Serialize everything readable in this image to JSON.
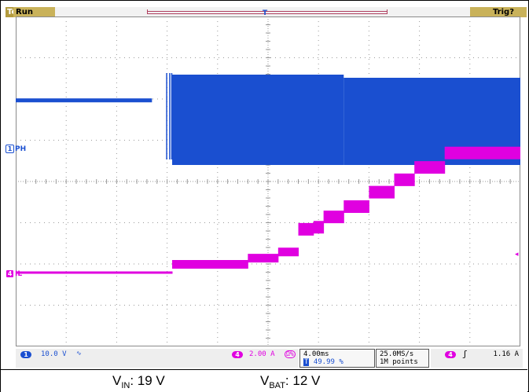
{
  "status_bar": {
    "logo": "Tek",
    "acq_state": "Run",
    "trigger_state": "Trig?"
  },
  "channels": {
    "ch1": {
      "number": "1",
      "label": "PH",
      "color": "#1a4fd0"
    },
    "ch4": {
      "number": "4",
      "label": "IL",
      "color": "#e000e0"
    }
  },
  "trigger_marker": "T",
  "readout": {
    "ch1_num": "1",
    "ch1_scale": "10.0 V",
    "ch1_bw_symbol": "∿",
    "ch4_num": "4",
    "ch4_scale": "2.00 A",
    "ch4_term": "Ω%",
    "timebase": "4.00ms",
    "trigger_pos": "49.99 %",
    "trigger_pos_marker": "T",
    "sample_rate": "25.0MS/s",
    "record_length": "1M points",
    "trig_source": "4",
    "trig_slope": "ʃ",
    "trig_level": "1.16 A"
  },
  "caption": {
    "vin_prefix": "V",
    "vin_sub": "IN",
    "vin_value": ": 19 V",
    "vbat_prefix": "V",
    "vbat_sub": "BAT",
    "vbat_value": ": 12 V"
  },
  "colors": {
    "ch1": "#1a4fd0",
    "ch4": "#e000e0",
    "status_gold": "#c9b25a",
    "grid": "#9a9a9a"
  },
  "waveform_data": {
    "ch1_PH": {
      "scale_V_per_div": 10.0,
      "segments": [
        {
          "t_div": [
            0,
            2.7
          ],
          "level_div": 0.3,
          "envelope_div": [
            0.3,
            0.3
          ],
          "note": "flat"
        },
        {
          "t_div": [
            2.7,
            3.1
          ],
          "level_div": 0.3,
          "note": "sparse spikes"
        },
        {
          "t_div": [
            3.1,
            6.5
          ],
          "envelope_div": [
            -0.75,
            1.75
          ]
        },
        {
          "t_div": [
            6.5,
            10
          ],
          "envelope_div": [
            -0.75,
            1.5
          ]
        }
      ]
    },
    "ch4_IL": {
      "scale_A_per_div": 2.0,
      "steps_div": [
        {
          "t_div": [
            0,
            3.1
          ],
          "level_div": 0.0
        },
        {
          "t_div": [
            3.1,
            4.6
          ],
          "level_div": 0.2
        },
        {
          "t_div": [
            4.6,
            5.2
          ],
          "level_div": 0.35
        },
        {
          "t_div": [
            5.2,
            5.6
          ],
          "level_div": 0.5
        },
        {
          "t_div": [
            5.6,
            5.9
          ],
          "level_div": 1.05
        },
        {
          "t_div": [
            5.9,
            6.1
          ],
          "level_div": 1.1
        },
        {
          "t_div": [
            6.1,
            6.5
          ],
          "level_div": 1.35
        },
        {
          "t_div": [
            6.5,
            7.0
          ],
          "level_div": 1.6
        },
        {
          "t_div": [
            7.0,
            7.5
          ],
          "level_div": 1.95
        },
        {
          "t_div": [
            7.5,
            7.9
          ],
          "level_div": 2.25
        },
        {
          "t_div": [
            7.9,
            8.5
          ],
          "level_div": 2.55
        },
        {
          "t_div": [
            8.5,
            10
          ],
          "level_div": 2.9
        }
      ]
    }
  }
}
